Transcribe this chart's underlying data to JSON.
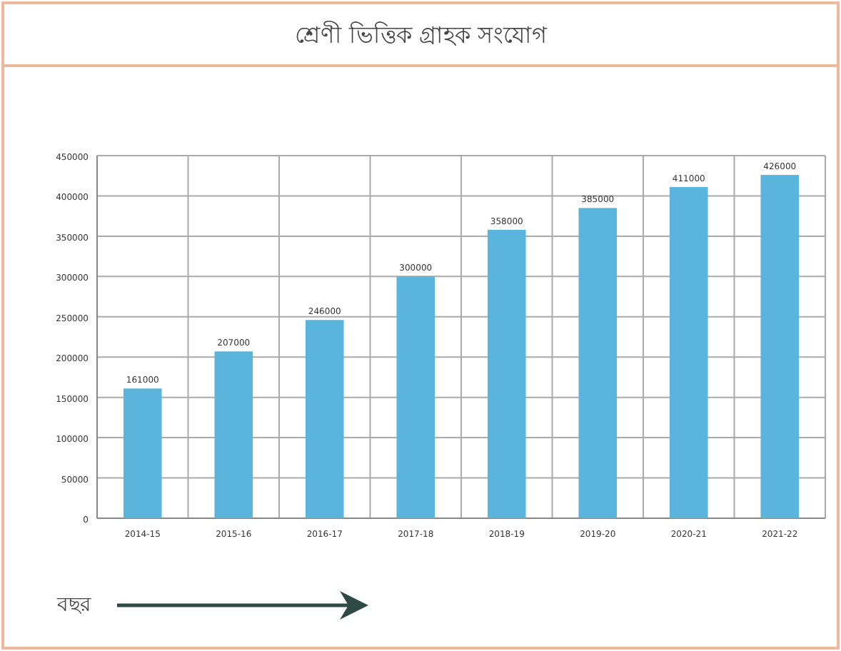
{
  "chart_data": {
    "type": "bar",
    "title": "শ্রেণী ভিত্তিক গ্রাহক সংযোগ",
    "xlabel": "বছর",
    "categories": [
      "2014-15",
      "2015-16",
      "2016-17",
      "2017-18",
      "2018-19",
      "2019-20",
      "2020-21",
      "2021-22"
    ],
    "values": [
      161000,
      207000,
      246000,
      300000,
      358000,
      385000,
      411000,
      426000
    ],
    "color": "#5ab4dc",
    "data_labels": true,
    "ylim": [
      0,
      450000
    ],
    "yticks": [
      0,
      50000,
      100000,
      150000,
      200000,
      250000,
      300000,
      350000,
      400000,
      450000
    ],
    "grid": true
  }
}
